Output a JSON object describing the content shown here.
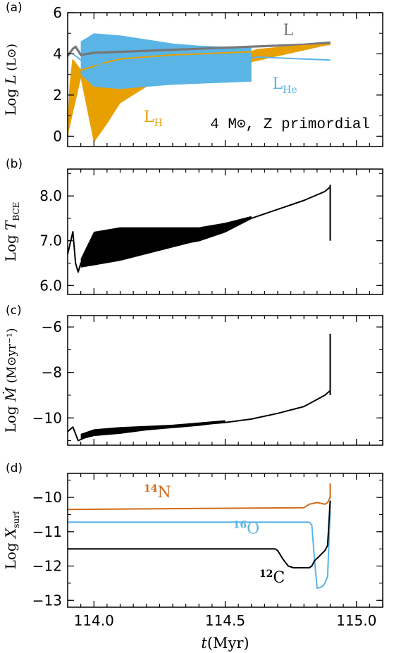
{
  "chart_data": [
    {
      "type": "line",
      "panel": "(a)",
      "ylabel": {
        "prefix": "Log",
        "var": "L",
        "unit": "(L⊙)"
      },
      "ylim": [
        -0.5,
        6
      ],
      "yticks": [
        "0",
        "2",
        "4",
        "6"
      ],
      "xlim": [
        113.9,
        115.1
      ],
      "annotation": "4 M⊙, Z primordial",
      "series": [
        {
          "name": "L",
          "color": "#777777",
          "x": [
            113.9,
            113.92,
            113.93,
            113.95,
            114.0,
            114.2,
            114.4,
            114.6,
            114.8,
            114.9
          ],
          "y": [
            3.9,
            4.25,
            4.35,
            3.95,
            4.05,
            4.15,
            4.25,
            4.35,
            4.45,
            4.55
          ]
        },
        {
          "name": "L_H",
          "color": "#e8a000",
          "x": [
            113.9,
            113.91,
            113.92,
            113.95,
            114.0,
            114.05,
            114.1,
            114.2,
            114.3,
            114.4,
            114.5,
            114.6,
            114.62,
            114.7,
            114.8,
            114.9
          ],
          "y": [
            0.0,
            2.5,
            3.7,
            3.2,
            3.4,
            3.6,
            3.75,
            3.85,
            3.95,
            4.0,
            4.05,
            4.1,
            4.2,
            4.3,
            4.4,
            4.45
          ],
          "envelope_low": {
            "x": [
              113.95,
              114.0,
              114.05,
              114.1,
              114.2,
              114.3,
              114.4,
              114.5,
              114.6
            ],
            "y": [
              2.8,
              -0.3,
              0.6,
              1.6,
              2.4,
              2.8,
              3.1,
              3.3,
              3.6
            ]
          }
        },
        {
          "name": "L_He",
          "color": "#5ab4e5",
          "x": [
            113.92,
            113.95,
            114.0,
            114.1,
            114.2,
            114.3,
            114.4,
            114.5,
            114.6,
            114.62,
            114.7,
            114.8,
            114.9
          ],
          "y": [
            4.0,
            3.7,
            3.5,
            3.5,
            3.55,
            3.6,
            3.65,
            3.7,
            3.8,
            3.85,
            3.8,
            3.75,
            3.7
          ],
          "envelope_high": {
            "x": [
              113.95,
              114.0,
              114.1,
              114.2,
              114.3,
              114.4,
              114.5,
              114.6
            ],
            "y": [
              4.6,
              5.0,
              4.9,
              4.7,
              4.5,
              4.4,
              4.35,
              4.3
            ]
          },
          "envelope_low": {
            "x": [
              113.95,
              114.0,
              114.1,
              114.2,
              114.3,
              114.4,
              114.5,
              114.6
            ],
            "y": [
              3.0,
              2.4,
              2.3,
              2.4,
              2.5,
              2.55,
              2.6,
              2.65
            ]
          }
        }
      ],
      "labels": [
        {
          "text": "L",
          "color": "#777777",
          "x": 114.72,
          "y": 4.9
        },
        {
          "text": "L",
          "sub": "He",
          "color": "#5ab4e5",
          "x": 114.68,
          "y": 2.3
        },
        {
          "text": "L",
          "sub": "H",
          "color": "#e8a000",
          "x": 114.19,
          "y": 0.7
        }
      ]
    },
    {
      "type": "line",
      "panel": "(b)",
      "ylabel": {
        "prefix": "Log",
        "var": "T",
        "sub": "BCE"
      },
      "ylim": [
        5.8,
        8.6
      ],
      "yticks": [
        "6.0",
        "7.0",
        "8.0"
      ],
      "xlim": [
        113.9,
        115.1
      ],
      "series": [
        {
          "name": "",
          "color": "#000000",
          "x": [
            113.9,
            113.92,
            113.93,
            113.94,
            113.95,
            114.0,
            114.1,
            114.2,
            114.3,
            114.4,
            114.5,
            114.6,
            114.7,
            114.8,
            114.88,
            114.9
          ],
          "y": [
            6.7,
            7.2,
            6.5,
            6.3,
            6.5,
            6.6,
            6.7,
            6.8,
            6.9,
            7.0,
            7.2,
            7.5,
            7.7,
            7.9,
            8.1,
            8.2
          ],
          "envelope_high": {
            "x": [
              113.95,
              114.0,
              114.1,
              114.2,
              114.3,
              114.4,
              114.5,
              114.6
            ],
            "y": [
              6.6,
              7.2,
              7.3,
              7.3,
              7.3,
              7.3,
              7.4,
              7.55
            ]
          },
          "envelope_low": {
            "x": [
              113.95,
              114.0,
              114.1,
              114.2,
              114.3,
              114.4,
              114.5,
              114.6
            ],
            "y": [
              6.4,
              6.45,
              6.55,
              6.7,
              6.85,
              7.0,
              7.2,
              7.5
            ]
          },
          "spike": {
            "x": 114.9,
            "y": [
              7.0,
              8.25
            ]
          }
        }
      ]
    },
    {
      "type": "line",
      "panel": "(c)",
      "ylabel": {
        "prefix": "Log",
        "var": "Ṁ",
        "unit": "(M⊙yr⁻¹)"
      },
      "ylim": [
        -11.2,
        -5.5
      ],
      "yticks": [
        "−6",
        "−8",
        "−10"
      ],
      "xlim": [
        113.9,
        115.1
      ],
      "series": [
        {
          "name": "",
          "color": "#000000",
          "x": [
            113.9,
            113.92,
            113.93,
            113.94,
            114.0,
            114.1,
            114.2,
            114.3,
            114.4,
            114.5,
            114.6,
            114.7,
            114.8,
            114.88,
            114.9
          ],
          "y": [
            -10.6,
            -10.4,
            -10.7,
            -11.0,
            -10.7,
            -10.6,
            -10.5,
            -10.4,
            -10.3,
            -10.2,
            -10.05,
            -9.8,
            -9.5,
            -9.0,
            -8.8
          ],
          "envelope_high": {
            "x": [
              113.95,
              114.0,
              114.1,
              114.2,
              114.3,
              114.4,
              114.5
            ],
            "y": [
              -10.7,
              -10.5,
              -10.4,
              -10.35,
              -10.3,
              -10.2,
              -10.1
            ]
          },
          "envelope_low": {
            "x": [
              113.95,
              114.0,
              114.1,
              114.2,
              114.3,
              114.4,
              114.5
            ],
            "y": [
              -10.95,
              -10.8,
              -10.7,
              -10.55,
              -10.45,
              -10.35,
              -10.2
            ]
          },
          "spike": {
            "x": 114.9,
            "y": [
              -9.0,
              -6.3
            ]
          }
        }
      ]
    },
    {
      "type": "line",
      "panel": "(d)",
      "ylabel": {
        "prefix": "Log",
        "var": "X",
        "sub": "surf"
      },
      "ylim": [
        -13.2,
        -9.3
      ],
      "yticks": [
        "−10",
        "−11",
        "−12",
        "−13"
      ],
      "xlim": [
        113.9,
        115.1
      ],
      "xticks": [
        "114.0",
        "114.5",
        "115.0"
      ],
      "xlabel": {
        "var": "t",
        "unit": "(Myr)"
      },
      "series": [
        {
          "name": "14N",
          "color": "#cf6b1a",
          "x": [
            113.9,
            114.8,
            114.82,
            114.85,
            114.88,
            114.89,
            114.9,
            114.9
          ],
          "y": [
            -10.35,
            -10.3,
            -10.2,
            -10.15,
            -10.2,
            -10.15,
            -10.0,
            -9.6
          ]
        },
        {
          "name": "16O",
          "color": "#5ab4e5",
          "x": [
            113.9,
            114.82,
            114.83,
            114.84,
            114.85,
            114.87,
            114.88,
            114.89,
            114.9
          ],
          "y": [
            -10.72,
            -10.72,
            -10.8,
            -11.8,
            -12.65,
            -12.6,
            -12.5,
            -12.3,
            -10.4
          ]
        },
        {
          "name": "12C",
          "color": "#000000",
          "x": [
            113.9,
            114.69,
            114.7,
            114.72,
            114.74,
            114.76,
            114.82,
            114.83,
            114.84,
            114.86,
            114.88,
            114.89,
            114.9
          ],
          "y": [
            -11.5,
            -11.5,
            -11.55,
            -11.8,
            -12.0,
            -12.05,
            -12.05,
            -12.0,
            -11.85,
            -11.7,
            -11.55,
            -11.4,
            -10.1
          ]
        }
      ],
      "labels": [
        {
          "text": "N",
          "sup": "14",
          "color": "#cf6b1a",
          "x": 114.19,
          "y": -10.0
        },
        {
          "text": "O",
          "sup": "16",
          "color": "#5ab4e5",
          "x": 114.53,
          "y": -11.05
        },
        {
          "text": "C",
          "sup": "12",
          "color": "#000000",
          "x": 114.63,
          "y": -12.48
        }
      ]
    }
  ]
}
